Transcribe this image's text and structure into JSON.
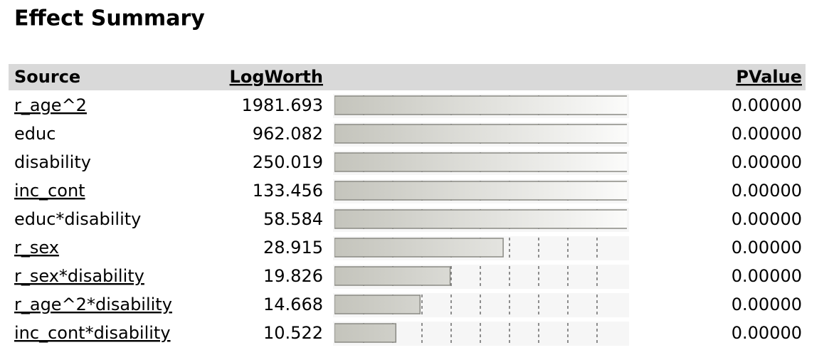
{
  "header": {
    "title": "Effect Summary"
  },
  "table": {
    "columns": [
      "Source",
      "LogWorth",
      "PValue"
    ],
    "rows": [
      {
        "source": "r_age^2",
        "logworth": 1981.693,
        "pvalue": "0.00000"
      },
      {
        "source": "educ",
        "logworth": 962.082,
        "pvalue": "0.00000"
      },
      {
        "source": "disability",
        "logworth": 250.019,
        "pvalue": "0.00000"
      },
      {
        "source": "inc_cont",
        "logworth": 133.456,
        "pvalue": "0.00000"
      },
      {
        "source": "educ*disability",
        "logworth": 58.584,
        "pvalue": "0.00000"
      },
      {
        "source": "r_sex",
        "logworth": 28.915,
        "pvalue": "0.00000"
      },
      {
        "source": "r_sex*disability",
        "logworth": 19.826,
        "pvalue": "0.00000"
      },
      {
        "source": "r_age^2*disability",
        "logworth": 14.668,
        "pvalue": "0.00000"
      },
      {
        "source": "inc_cont*disability",
        "logworth": 10.522,
        "pvalue": "0.00000"
      }
    ]
  },
  "logworth_bar": {
    "xlim": [
      0,
      50
    ],
    "xticks": [
      5,
      10,
      15,
      20,
      25,
      30,
      35,
      40,
      45
    ],
    "reference": 2
  }
}
